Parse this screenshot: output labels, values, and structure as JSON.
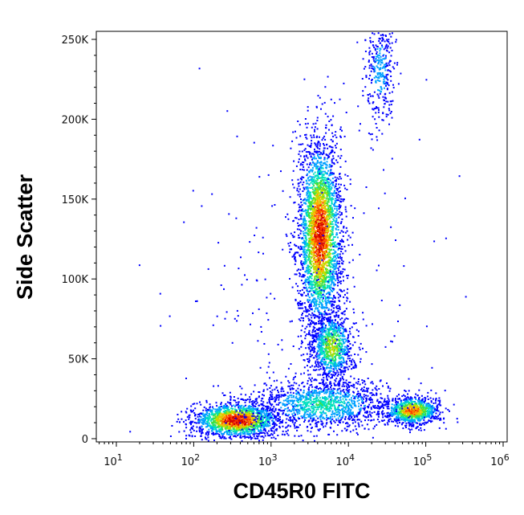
{
  "chart_data": {
    "type": "scatter",
    "subtype": "flow-cytometry-density-dot-plot",
    "xlabel": "CD45R0 FITC",
    "ylabel": "Side Scatter",
    "x_scale": "log",
    "xlim": [
      4,
      110000
    ],
    "ylim": [
      -2000,
      255000
    ],
    "x_ticks": [
      {
        "value": 10,
        "base": "10",
        "exp": "1"
      },
      {
        "value": 100,
        "base": "10",
        "exp": "2"
      },
      {
        "value": 1000,
        "base": "10",
        "exp": "3"
      },
      {
        "value": 10000,
        "base": "10",
        "exp": "4"
      },
      {
        "value": 100000,
        "base": "10",
        "exp": "5"
      },
      {
        "value": 1000000,
        "base": "10",
        "exp": "6"
      }
    ],
    "y_ticks": [
      {
        "value": 0,
        "label": "0"
      },
      {
        "value": 50000,
        "label": "50K"
      },
      {
        "value": 100000,
        "label": "100K"
      },
      {
        "value": 150000,
        "label": "150K"
      },
      {
        "value": 200000,
        "label": "200K"
      },
      {
        "value": 250000,
        "label": "250K"
      }
    ],
    "grid": false,
    "colormap": [
      "#0000ff",
      "#00a0ff",
      "#00e0c0",
      "#40e040",
      "#c0e000",
      "#ffb000",
      "#ff4000",
      "#d00000"
    ],
    "populations": [
      {
        "x_center": 350,
        "y_center": 12000,
        "x_spread_decades": 0.28,
        "y_spread": 5500,
        "count": 1700,
        "peak_density": 1.0
      },
      {
        "x_center": 4200,
        "y_center": 128000,
        "x_spread_decades": 0.14,
        "y_spread": 30000,
        "count": 3200,
        "peak_density": 0.95
      },
      {
        "x_center": 6000,
        "y_center": 58000,
        "x_spread_decades": 0.14,
        "y_spread": 11000,
        "count": 900,
        "peak_density": 0.55
      },
      {
        "x_center": 65000,
        "y_center": 18000,
        "x_spread_decades": 0.18,
        "y_spread": 4500,
        "count": 900,
        "peak_density": 0.8
      },
      {
        "x_center": 4500,
        "y_center": 22000,
        "x_spread_decades": 0.45,
        "y_spread": 8000,
        "count": 1300,
        "peak_density": 0.35
      },
      {
        "x_center": 25000,
        "y_center": 230000,
        "x_spread_decades": 0.1,
        "y_spread": 18000,
        "count": 350,
        "peak_density": 0.2
      },
      {
        "x_center": 3000,
        "y_center": 80000,
        "x_spread_decades": 0.8,
        "y_spread": 60000,
        "count": 250,
        "peak_density": 0.05
      }
    ]
  }
}
